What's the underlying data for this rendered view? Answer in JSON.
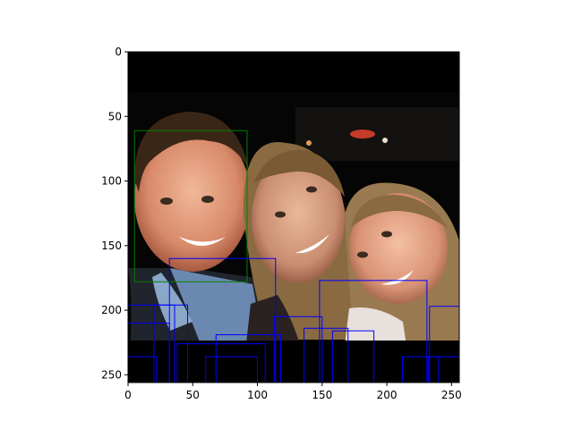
{
  "figure": {
    "x_ticks": [
      "0",
      "50",
      "100",
      "150",
      "200",
      "250"
    ],
    "y_ticks": [
      "0",
      "50",
      "100",
      "150",
      "200",
      "250"
    ]
  },
  "image_description": {
    "scene": "three smiling people posing close together at night",
    "palette": {
      "background": "#050505",
      "skin": "#d89a78",
      "hair_dark": "#3a2616",
      "hair_light": "#8a6a40",
      "shirt": "#6a88b0"
    }
  },
  "chart_data": {
    "type": "scatter",
    "xlim": [
      0,
      256
    ],
    "ylim": [
      256,
      0
    ],
    "boxes": [
      {
        "label": "green",
        "color": "#008000",
        "x0": 5,
        "y0": 61,
        "x1": 92,
        "y1": 178
      },
      {
        "label": "blue",
        "color": "#0000ff",
        "x0": 32,
        "y0": 160,
        "x1": 114,
        "y1": 256
      },
      {
        "label": "blue",
        "color": "#0000ff",
        "x0": 148,
        "y0": 177,
        "x1": 231,
        "y1": 256
      },
      {
        "label": "blue",
        "color": "#0000ff",
        "x0": 233,
        "y0": 197,
        "x1": 256,
        "y1": 256
      },
      {
        "label": "blue",
        "color": "#0000ff",
        "x0": 0,
        "y0": 196,
        "x1": 46,
        "y1": 256
      },
      {
        "label": "blue",
        "color": "#0000ff",
        "x0": 0,
        "y0": 210,
        "x1": 32,
        "y1": 256
      },
      {
        "label": "blue",
        "color": "#0000ff",
        "x0": 20,
        "y0": 196,
        "x1": 36,
        "y1": 256
      },
      {
        "label": "blue",
        "color": "#0000ff",
        "x0": 38,
        "y0": 226,
        "x1": 106,
        "y1": 256
      },
      {
        "label": "blue",
        "color": "#0000ff",
        "x0": 68,
        "y0": 219,
        "x1": 118,
        "y1": 256
      },
      {
        "label": "blue",
        "color": "#0000ff",
        "x0": 113,
        "y0": 205,
        "x1": 150,
        "y1": 256
      },
      {
        "label": "blue",
        "color": "#0000ff",
        "x0": 136,
        "y0": 214,
        "x1": 170,
        "y1": 256
      },
      {
        "label": "blue",
        "color": "#0000ff",
        "x0": 158,
        "y0": 216,
        "x1": 190,
        "y1": 256
      },
      {
        "label": "blue",
        "color": "#0000ff",
        "x0": 212,
        "y0": 236,
        "x1": 240,
        "y1": 256
      },
      {
        "label": "blue",
        "color": "#0000ff",
        "x0": 232,
        "y0": 236,
        "x1": 256,
        "y1": 256
      },
      {
        "label": "blue",
        "color": "#0000ff",
        "x0": 60,
        "y0": 236,
        "x1": 100,
        "y1": 256
      },
      {
        "label": "blue",
        "color": "#0000ff",
        "x0": 0,
        "y0": 236,
        "x1": 22,
        "y1": 256
      }
    ]
  }
}
